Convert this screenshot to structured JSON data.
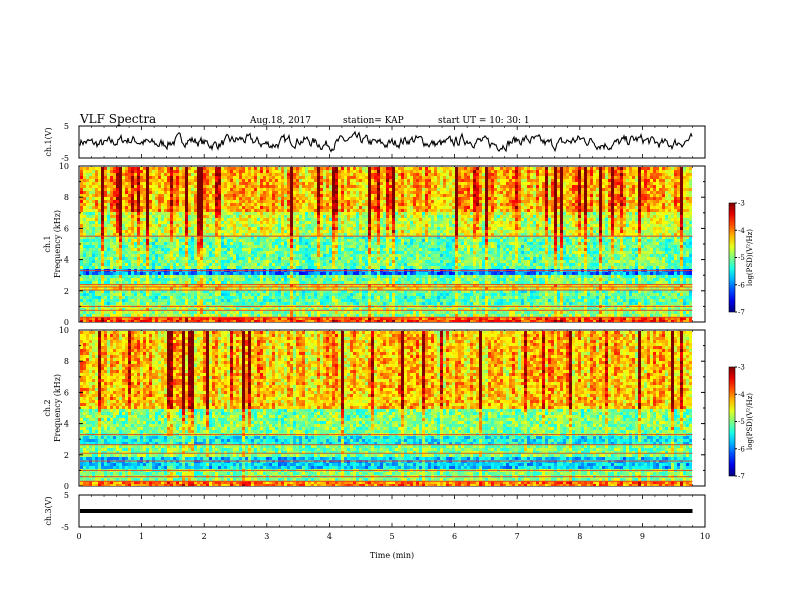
{
  "header": {
    "title": "VLF Spectra",
    "date": "Aug.18, 2017",
    "station": "station= KAP",
    "start": "start  UT =   10: 30: 1"
  },
  "chart_data": [
    {
      "type": "line",
      "panel": "ch1-waveform",
      "ylabel": "ch.1(V)",
      "ylim": [
        -5,
        5
      ],
      "y_ticks": [
        "5",
        "-5"
      ],
      "xlim": [
        0,
        10
      ],
      "x_end": 9.8,
      "series_description": "noisy waveform oscillating around 0 V, amplitude about ±2 V"
    },
    {
      "type": "heatmap",
      "panel": "ch1-spectrogram",
      "ylabel": "ch.1\nFrequency (kHz)",
      "ylim": [
        0,
        10
      ],
      "y_ticks": [
        "0",
        "2",
        "4",
        "6",
        "8",
        "10"
      ],
      "xlim": [
        0,
        10
      ],
      "x_end": 9.8,
      "colorbar": {
        "label": "log(PSD)(V²/Hz)",
        "range": [
          -7,
          -3
        ],
        "ticks": [
          "-3",
          "-4",
          "-5",
          "-6",
          "-7"
        ]
      },
      "bands": [
        {
          "from": 0.0,
          "to": 0.4,
          "level": -3.8
        },
        {
          "from": 0.4,
          "to": 1.0,
          "level": -4.9
        },
        {
          "from": 1.0,
          "to": 2.1,
          "level": -5.2
        },
        {
          "from": 2.1,
          "to": 2.4,
          "level": -4.6
        },
        {
          "from": 2.4,
          "to": 3.0,
          "level": -5.1
        },
        {
          "from": 3.0,
          "to": 3.4,
          "level": -6.0
        },
        {
          "from": 3.4,
          "to": 5.5,
          "level": -5.1
        },
        {
          "from": 5.5,
          "to": 7.0,
          "level": -4.7
        },
        {
          "from": 7.0,
          "to": 10.0,
          "level": -4.2
        }
      ],
      "lines_khz": [
        0.3,
        0.75,
        1.0,
        2.05,
        2.25,
        2.4,
        3.3,
        5.5
      ]
    },
    {
      "type": "heatmap",
      "panel": "ch2-spectrogram",
      "ylabel": "ch.2\nFrequency (kHz)",
      "ylim": [
        0,
        10
      ],
      "y_ticks": [
        "0",
        "2",
        "4",
        "6",
        "8",
        "10"
      ],
      "xlim": [
        0,
        10
      ],
      "x_end": 9.8,
      "colorbar": {
        "label": "log(PSD)(V²/Hz)",
        "range": [
          -7,
          -3
        ],
        "ticks": [
          "-3",
          "-4",
          "-5",
          "-6",
          "-7"
        ]
      },
      "bands": [
        {
          "from": 0.0,
          "to": 0.3,
          "level": -4.0
        },
        {
          "from": 0.3,
          "to": 1.1,
          "level": -5.0
        },
        {
          "from": 1.1,
          "to": 1.9,
          "level": -5.7
        },
        {
          "from": 1.9,
          "to": 2.6,
          "level": -5.0
        },
        {
          "from": 2.6,
          "to": 3.3,
          "level": -5.5
        },
        {
          "from": 3.3,
          "to": 5.0,
          "level": -5.0
        },
        {
          "from": 5.0,
          "to": 10.0,
          "level": -4.3
        }
      ],
      "lines_khz": [
        0.3,
        0.6,
        1.0,
        1.6,
        2.1,
        2.65,
        3.3
      ]
    },
    {
      "type": "line",
      "panel": "ch3-waveform",
      "ylabel": "ch.3(V)",
      "ylim": [
        -5,
        5
      ],
      "y_ticks": [
        "5",
        "-5"
      ],
      "xlabel": "Time  (min)",
      "xlim": [
        0,
        10
      ],
      "x_ticks": [
        "0",
        "1",
        "2",
        "3",
        "4",
        "5",
        "6",
        "7",
        "8",
        "9",
        "10"
      ],
      "x_end": 9.8,
      "level": 0
    }
  ]
}
